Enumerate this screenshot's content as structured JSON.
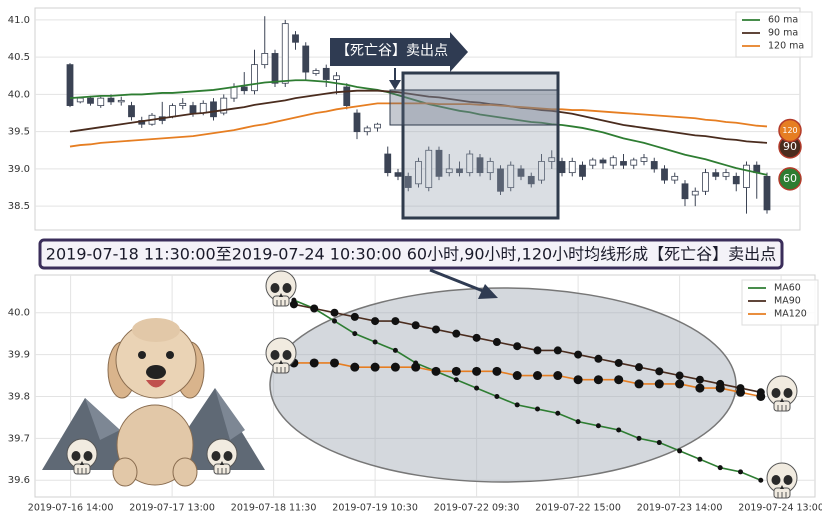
{
  "chart_data": [
    {
      "type": "candlestick",
      "annotation": "【死亡谷】卖出点",
      "open": [
        40.4,
        39.9,
        39.95,
        39.85,
        39.95,
        39.9,
        39.85,
        39.65,
        39.6,
        39.7,
        39.7,
        39.85,
        39.85,
        39.75,
        39.9,
        39.75,
        39.95,
        40.1,
        40.05,
        40.4,
        40.55,
        40.15,
        40.8,
        40.65,
        40.28,
        40.35,
        40.2,
        40.1,
        39.75,
        39.5,
        39.55,
        39.2,
        38.95,
        38.9,
        38.8,
        38.75,
        39.25,
        38.95,
        39.0,
        38.95,
        39.15,
        38.95,
        39.0,
        38.75,
        39.0,
        38.9,
        38.85,
        39.1,
        39.1,
        38.95,
        39.05,
        39.05,
        39.12,
        39.05,
        39.1,
        39.05,
        39.1,
        39.1,
        39.0,
        38.85,
        38.8,
        38.65,
        38.7,
        38.95,
        38.9,
        38.9,
        38.75,
        39.05,
        38.9
      ],
      "close": [
        39.85,
        39.95,
        39.88,
        39.95,
        39.9,
        39.92,
        39.7,
        39.6,
        39.72,
        39.65,
        39.85,
        39.88,
        39.75,
        39.88,
        39.7,
        39.95,
        40.1,
        40.05,
        40.4,
        40.55,
        40.15,
        40.95,
        40.7,
        40.3,
        40.32,
        40.2,
        40.25,
        39.85,
        39.5,
        39.55,
        39.6,
        38.95,
        38.9,
        38.75,
        39.1,
        39.25,
        38.9,
        39.0,
        38.95,
        39.2,
        38.95,
        39.1,
        38.7,
        39.05,
        38.9,
        38.8,
        39.1,
        39.15,
        38.95,
        39.1,
        38.9,
        39.12,
        39.08,
        39.15,
        39.05,
        39.12,
        39.15,
        39.0,
        38.85,
        38.9,
        38.6,
        38.7,
        38.95,
        38.9,
        38.95,
        38.8,
        39.05,
        38.95,
        38.45
      ],
      "high": [
        40.42,
        39.97,
        39.98,
        39.97,
        40.0,
        39.97,
        39.9,
        39.7,
        39.75,
        39.9,
        39.88,
        39.95,
        39.9,
        39.92,
        39.95,
        40.0,
        40.15,
        40.3,
        40.6,
        41.05,
        40.6,
        41.0,
        40.85,
        40.7,
        40.35,
        40.4,
        40.3,
        40.15,
        39.8,
        39.58,
        39.62,
        39.3,
        39.0,
        38.95,
        39.15,
        39.3,
        39.3,
        39.2,
        39.1,
        39.25,
        39.2,
        39.15,
        39.05,
        39.1,
        39.05,
        38.95,
        39.2,
        39.25,
        39.15,
        39.15,
        39.1,
        39.15,
        39.15,
        39.18,
        39.2,
        39.15,
        39.2,
        39.15,
        39.05,
        38.95,
        38.85,
        38.75,
        39.0,
        39.0,
        39.0,
        38.95,
        39.1,
        39.1,
        38.95
      ],
      "low": [
        39.83,
        39.88,
        39.85,
        39.82,
        39.86,
        39.85,
        39.65,
        39.55,
        39.58,
        39.6,
        39.68,
        39.8,
        39.7,
        39.72,
        39.65,
        39.72,
        39.9,
        40.0,
        40.0,
        40.35,
        40.1,
        40.1,
        40.6,
        40.2,
        40.25,
        40.1,
        40.0,
        39.8,
        39.4,
        39.45,
        39.5,
        38.9,
        38.85,
        38.7,
        38.75,
        38.7,
        38.85,
        38.9,
        38.9,
        38.9,
        38.9,
        38.85,
        38.65,
        38.7,
        38.85,
        38.75,
        38.8,
        39.0,
        38.9,
        38.9,
        38.85,
        39.0,
        39.0,
        39.0,
        39.0,
        39.0,
        39.05,
        38.95,
        38.8,
        38.8,
        38.5,
        38.5,
        38.65,
        38.85,
        38.85,
        38.7,
        38.4,
        38.6,
        38.4
      ],
      "up_color": "#ffffff",
      "down_color": "#3b4354",
      "series": [
        {
          "name": "60 ma",
          "badge": "60",
          "color": "#2e7d32",
          "values": [
            39.95,
            39.96,
            39.97,
            39.98,
            39.98,
            39.99,
            40.0,
            40.0,
            40.01,
            40.02,
            40.02,
            40.03,
            40.04,
            40.05,
            40.06,
            40.08,
            40.1,
            40.12,
            40.14,
            40.16,
            40.17,
            40.18,
            40.19,
            40.19,
            40.18,
            40.17,
            40.15,
            40.13,
            40.1,
            40.08,
            40.06,
            40.03,
            39.99,
            39.95,
            39.91,
            39.87,
            39.84,
            39.81,
            39.78,
            39.76,
            39.73,
            39.71,
            39.69,
            39.67,
            39.65,
            39.63,
            39.62,
            39.6,
            39.59,
            39.57,
            39.55,
            39.52,
            39.49,
            39.45,
            39.41,
            39.38,
            39.35,
            39.31,
            39.27,
            39.23,
            39.19,
            39.16,
            39.13,
            39.09,
            39.05,
            39.01,
            38.98,
            38.95,
            38.92
          ]
        },
        {
          "name": "90 ma",
          "badge": "90",
          "color": "#4a2c1e",
          "values": [
            39.5,
            39.52,
            39.54,
            39.56,
            39.58,
            39.6,
            39.62,
            39.64,
            39.66,
            39.68,
            39.7,
            39.72,
            39.74,
            39.75,
            39.77,
            39.79,
            39.81,
            39.83,
            39.86,
            39.88,
            39.9,
            39.92,
            39.95,
            39.97,
            39.99,
            40.01,
            40.03,
            40.04,
            40.05,
            40.05,
            40.05,
            40.04,
            40.03,
            40.01,
            39.99,
            39.97,
            39.96,
            39.94,
            39.92,
            39.9,
            39.89,
            39.87,
            39.86,
            39.84,
            39.82,
            39.81,
            39.79,
            39.78,
            39.76,
            39.74,
            39.71,
            39.68,
            39.65,
            39.62,
            39.59,
            39.57,
            39.55,
            39.53,
            39.51,
            39.49,
            39.47,
            39.45,
            39.44,
            39.42,
            39.4,
            39.39,
            39.37,
            39.36,
            39.35
          ]
        },
        {
          "name": "120 ma",
          "badge": "120",
          "color": "#e67e22",
          "values": [
            39.3,
            39.32,
            39.33,
            39.35,
            39.36,
            39.37,
            39.38,
            39.39,
            39.4,
            39.41,
            39.42,
            39.43,
            39.44,
            39.46,
            39.48,
            39.5,
            39.52,
            39.55,
            39.58,
            39.6,
            39.63,
            39.66,
            39.69,
            39.72,
            39.75,
            39.77,
            39.8,
            39.82,
            39.84,
            39.86,
            39.88,
            39.88,
            39.88,
            39.88,
            39.88,
            39.88,
            39.87,
            39.87,
            39.87,
            39.87,
            39.86,
            39.86,
            39.85,
            39.84,
            39.83,
            39.82,
            39.81,
            39.8,
            39.8,
            39.79,
            39.79,
            39.78,
            39.77,
            39.76,
            39.75,
            39.74,
            39.73,
            39.72,
            39.71,
            39.7,
            39.69,
            39.68,
            39.66,
            39.65,
            39.63,
            39.62,
            39.6,
            39.58,
            39.57
          ]
        }
      ],
      "ylim": [
        38.18,
        41.16
      ],
      "yticks": [
        38.5,
        {
          "value": 39,
          "label": "39.0"
        },
        39.5,
        {
          "value": 40,
          "label": "40.0"
        },
        40.5,
        {
          "value": 41,
          "label": "41.0"
        }
      ],
      "grid": true,
      "legend": "upper right"
    },
    {
      "type": "line",
      "annotation": "2019-07-18 11:30:00至2019-07-24 10:30:00 60小时,90小时,120小时均线形成【死亡谷】卖出点",
      "categories": [
        null,
        null,
        "2019-07-16 14:00",
        null,
        null,
        null,
        null,
        "2019-07-17 13:00",
        null,
        null,
        null,
        null,
        "2019-07-18 11:30",
        null,
        null,
        null,
        null,
        "2019-07-19 10:30",
        null,
        null,
        null,
        null,
        "2019-07-22 09:30",
        null,
        null,
        null,
        null,
        "2019-07-22 15:00",
        null,
        null,
        null,
        null,
        "2019-07-23 14:00",
        null,
        null,
        null,
        null,
        "2019-07-24 13:00",
        null
      ],
      "series": [
        {
          "name": "MA60",
          "color": "#2e7d32",
          "marker_size": 2.5,
          "values": [
            null,
            null,
            null,
            null,
            null,
            null,
            null,
            null,
            null,
            null,
            null,
            null,
            null,
            40.03,
            40.01,
            39.98,
            39.95,
            39.93,
            39.91,
            39.88,
            39.86,
            39.84,
            39.82,
            39.8,
            39.78,
            39.77,
            39.76,
            39.74,
            39.73,
            39.72,
            39.7,
            39.69,
            39.67,
            39.65,
            39.63,
            39.62,
            39.6,
            null,
            null
          ]
        },
        {
          "name": "MA90",
          "color": "#4a2c1e",
          "marker_size": 4,
          "values": [
            null,
            null,
            null,
            null,
            null,
            null,
            null,
            null,
            null,
            null,
            null,
            null,
            null,
            40.02,
            40.01,
            40.0,
            39.99,
            39.98,
            39.98,
            39.97,
            39.96,
            39.95,
            39.94,
            39.93,
            39.92,
            39.91,
            39.91,
            39.9,
            39.89,
            39.88,
            39.87,
            39.86,
            39.85,
            39.84,
            39.83,
            39.82,
            39.81,
            null,
            null
          ]
        },
        {
          "name": "MA120",
          "color": "#e67e22",
          "marker_size": 4.5,
          "values": [
            null,
            null,
            null,
            null,
            null,
            null,
            null,
            null,
            null,
            null,
            null,
            null,
            null,
            39.88,
            39.88,
            39.88,
            39.87,
            39.87,
            39.87,
            39.87,
            39.86,
            39.86,
            39.86,
            39.86,
            39.85,
            39.85,
            39.85,
            39.84,
            39.84,
            39.84,
            39.83,
            39.83,
            39.83,
            39.82,
            39.82,
            39.81,
            39.8,
            null,
            null
          ]
        }
      ],
      "marker_color": "#111111",
      "ylim": [
        39.56,
        40.09
      ],
      "yticks": [
        39.6,
        39.7,
        39.8,
        39.9,
        {
          "value": 40,
          "label": "40.0"
        }
      ],
      "grid": true,
      "legend": "upper right"
    }
  ]
}
